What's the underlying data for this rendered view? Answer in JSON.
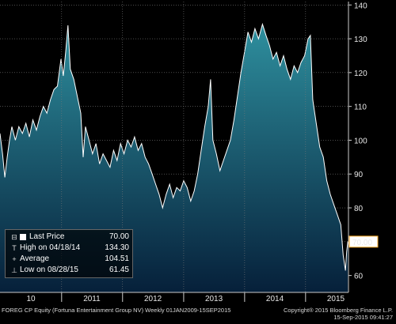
{
  "chart_data": {
    "type": "area",
    "ylim": [
      55,
      141
    ],
    "y_ticks": [
      60,
      70,
      80,
      90,
      100,
      110,
      120,
      130,
      140
    ],
    "x_range": [
      "2009-12-28",
      "2015-09-15"
    ],
    "x_tick_labels": [
      {
        "date": "2010-07-01",
        "label": "10"
      },
      {
        "date": "2011-07-01",
        "label": "2011"
      },
      {
        "date": "2012-07-01",
        "label": "2012"
      },
      {
        "date": "2013-07-01",
        "label": "2013"
      },
      {
        "date": "2014-07-01",
        "label": "2014"
      },
      {
        "date": "2015-07-01",
        "label": "2015"
      }
    ],
    "x_dividers": [
      "2011-01-01",
      "2012-01-01",
      "2013-01-01",
      "2014-01-01",
      "2015-01-01"
    ],
    "colors": {
      "line": "#ffffff",
      "fill_top": "#2e8f9e",
      "fill_bottom": "#06203a",
      "grid": "#7a7a7a",
      "last_price": "#f5a623"
    },
    "last_price_label": "70.00",
    "series": [
      {
        "points": [
          [
            "2009-12-28",
            102
          ],
          [
            "2010-01-12",
            96
          ],
          [
            "2010-01-26",
            89
          ],
          [
            "2010-02-09",
            95
          ],
          [
            "2010-02-23",
            100
          ],
          [
            "2010-03-09",
            104
          ],
          [
            "2010-03-30",
            100
          ],
          [
            "2010-04-20",
            104
          ],
          [
            "2010-05-11",
            102
          ],
          [
            "2010-06-01",
            105
          ],
          [
            "2010-06-22",
            101
          ],
          [
            "2010-07-13",
            106
          ],
          [
            "2010-08-03",
            103
          ],
          [
            "2010-08-24",
            107
          ],
          [
            "2010-09-14",
            110
          ],
          [
            "2010-10-05",
            108
          ],
          [
            "2010-10-26",
            112
          ],
          [
            "2010-11-16",
            115
          ],
          [
            "2010-12-07",
            116
          ],
          [
            "2010-12-28",
            124
          ],
          [
            "2011-01-11",
            119
          ],
          [
            "2011-01-25",
            126
          ],
          [
            "2011-02-08",
            134
          ],
          [
            "2011-02-22",
            121
          ],
          [
            "2011-03-15",
            118
          ],
          [
            "2011-04-05",
            113
          ],
          [
            "2011-04-26",
            108
          ],
          [
            "2011-05-10",
            95
          ],
          [
            "2011-05-24",
            104
          ],
          [
            "2011-06-14",
            100
          ],
          [
            "2011-07-05",
            96
          ],
          [
            "2011-07-26",
            99
          ],
          [
            "2011-08-16",
            93
          ],
          [
            "2011-09-06",
            96
          ],
          [
            "2011-09-27",
            94
          ],
          [
            "2011-10-18",
            92
          ],
          [
            "2011-11-08",
            97
          ],
          [
            "2011-11-29",
            94
          ],
          [
            "2011-12-20",
            99
          ],
          [
            "2012-01-10",
            96
          ],
          [
            "2012-01-31",
            100
          ],
          [
            "2012-02-21",
            98
          ],
          [
            "2012-03-13",
            101
          ],
          [
            "2012-04-03",
            97
          ],
          [
            "2012-04-24",
            99
          ],
          [
            "2012-05-15",
            95
          ],
          [
            "2012-06-05",
            93
          ],
          [
            "2012-06-26",
            90
          ],
          [
            "2012-07-17",
            87
          ],
          [
            "2012-08-07",
            84
          ],
          [
            "2012-08-28",
            80
          ],
          [
            "2012-09-18",
            84
          ],
          [
            "2012-10-09",
            87
          ],
          [
            "2012-10-30",
            83
          ],
          [
            "2012-11-20",
            86
          ],
          [
            "2012-12-11",
            85
          ],
          [
            "2013-01-01",
            88
          ],
          [
            "2013-01-22",
            86
          ],
          [
            "2013-02-12",
            82
          ],
          [
            "2013-03-05",
            85
          ],
          [
            "2013-03-26",
            90
          ],
          [
            "2013-04-16",
            97
          ],
          [
            "2013-05-07",
            104
          ],
          [
            "2013-05-28",
            110
          ],
          [
            "2013-06-11",
            118
          ],
          [
            "2013-06-25",
            100
          ],
          [
            "2013-07-16",
            96
          ],
          [
            "2013-08-06",
            91
          ],
          [
            "2013-08-27",
            94
          ],
          [
            "2013-09-17",
            97
          ],
          [
            "2013-10-08",
            100
          ],
          [
            "2013-10-29",
            106
          ],
          [
            "2013-11-19",
            113
          ],
          [
            "2013-12-10",
            120
          ],
          [
            "2013-12-31",
            126
          ],
          [
            "2014-01-21",
            132
          ],
          [
            "2014-02-11",
            129
          ],
          [
            "2014-03-04",
            133
          ],
          [
            "2014-03-25",
            130
          ],
          [
            "2014-04-18",
            134.3
          ],
          [
            "2014-05-09",
            131
          ],
          [
            "2014-05-30",
            128
          ],
          [
            "2014-06-20",
            124
          ],
          [
            "2014-07-11",
            126
          ],
          [
            "2014-08-01",
            122
          ],
          [
            "2014-08-22",
            125
          ],
          [
            "2014-09-12",
            121
          ],
          [
            "2014-10-03",
            118
          ],
          [
            "2014-10-24",
            122
          ],
          [
            "2014-11-14",
            120
          ],
          [
            "2014-12-05",
            123
          ],
          [
            "2014-12-26",
            125
          ],
          [
            "2015-01-16",
            130
          ],
          [
            "2015-01-30",
            131
          ],
          [
            "2015-02-13",
            112
          ],
          [
            "2015-03-06",
            105
          ],
          [
            "2015-03-27",
            98
          ],
          [
            "2015-04-17",
            95
          ],
          [
            "2015-05-08",
            88
          ],
          [
            "2015-05-29",
            84
          ],
          [
            "2015-06-19",
            81
          ],
          [
            "2015-07-10",
            78
          ],
          [
            "2015-07-31",
            75
          ],
          [
            "2015-08-14",
            66
          ],
          [
            "2015-08-28",
            61.45
          ],
          [
            "2015-09-04",
            67
          ],
          [
            "2015-09-11",
            70
          ]
        ]
      }
    ]
  },
  "legend": [
    {
      "marker": "box",
      "label": "Last Price",
      "value": "70.00"
    },
    {
      "marker": "T",
      "label": "High on 04/18/14",
      "value": "134.30"
    },
    {
      "marker": "avg",
      "label": "Average",
      "value": "104.51"
    },
    {
      "marker": "⊥",
      "label": "Low on 08/28/15",
      "value": "61.45"
    }
  ],
  "footer": {
    "security": "FOREG CP Equity (Fortuna Entertainment Group NV) Weekly 01JAN2009-15SEP2015",
    "copyright": "Copyright® 2015 Bloomberg Finance L.P.",
    "timestamp": "15-Sep-2015 09:41:27"
  }
}
